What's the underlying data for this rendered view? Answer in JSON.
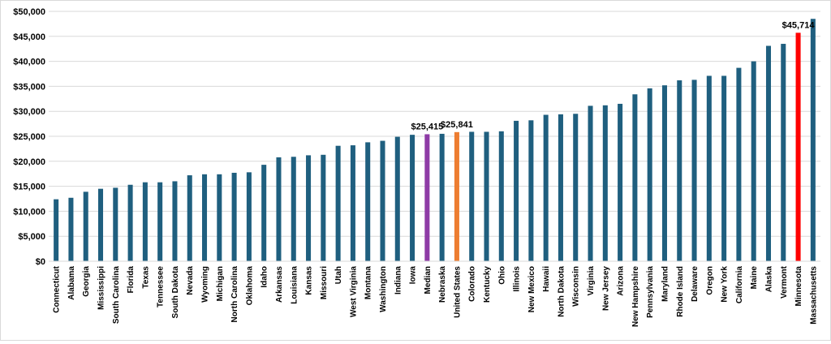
{
  "chart_data": {
    "type": "bar",
    "title": "",
    "xlabel": "",
    "ylabel": "",
    "ylim": [
      0,
      50000
    ],
    "yticks": [
      0,
      5000,
      10000,
      15000,
      20000,
      25000,
      30000,
      35000,
      40000,
      45000,
      50000
    ],
    "ytick_labels": [
      "$0",
      "$5,000",
      "$10,000",
      "$15,000",
      "$20,000",
      "$25,000",
      "$30,000",
      "$35,000",
      "$40,000",
      "$45,000",
      "$50,000"
    ],
    "grid": "horizontal",
    "legend": "none",
    "colors": {
      "default": "#1f5f7f",
      "median": "#8e3ba6",
      "us": "#ed7d31",
      "highlight": "#ff0000",
      "grid": "#d9d9d9"
    },
    "categories": [
      "Connecticut",
      "Alabama",
      "Georgia",
      "Mississippi",
      "South Carolina",
      "Florida",
      "Texas",
      "Tennessee",
      "South Dakota",
      "Nevada",
      "Wyoming",
      "Michigan",
      "North Carolina",
      "Oklahoma",
      "Idaho",
      "Arkansas",
      "Louisiana",
      "Kansas",
      "Missouri",
      "Utah",
      "West Virginia",
      "Montana",
      "Washington",
      "Indiana",
      "Iowa",
      "Median",
      "Nebraska",
      "United States",
      "Colorado",
      "Kentucky",
      "Ohio",
      "Illinois",
      "New Mexico",
      "Hawaii",
      "North Dakota",
      "Wisconsin",
      "Virginia",
      "New Jersey",
      "Arizona",
      "New Hampshire",
      "Pennsylvania",
      "Maryland",
      "Rhode Island",
      "Delaware",
      "Oregon",
      "New York",
      "California",
      "Maine",
      "Alaska",
      "Vermont",
      "Minnesota",
      "Massachusetts"
    ],
    "values": [
      12400,
      12700,
      13900,
      14500,
      14700,
      15300,
      15800,
      15800,
      16000,
      17200,
      17400,
      17400,
      17700,
      17800,
      19300,
      20800,
      20900,
      21200,
      21300,
      23100,
      23200,
      23800,
      24100,
      24900,
      25300,
      25415,
      25500,
      25841,
      25900,
      25900,
      26000,
      28100,
      28200,
      29300,
      29400,
      29500,
      31100,
      31200,
      31500,
      33400,
      34600,
      35200,
      36200,
      36300,
      37100,
      37100,
      38700,
      40000,
      43100,
      43500,
      45714,
      48500
    ],
    "bar_colors": {
      "Median": "median",
      "United States": "us",
      "Minnesota": "highlight"
    },
    "data_labels": [
      {
        "category": "Median",
        "text": "$25,415"
      },
      {
        "category": "United States",
        "text": "$25,841"
      },
      {
        "category": "Minnesota",
        "text": "$45,714"
      }
    ]
  }
}
